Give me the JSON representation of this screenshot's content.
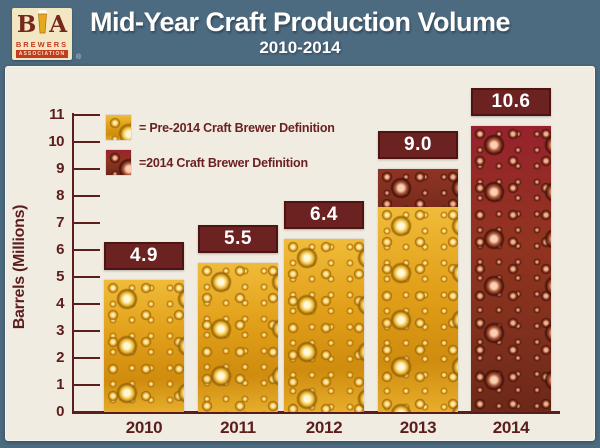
{
  "header": {
    "title": "Mid-Year Craft Production Volume",
    "subtitle": "2010-2014",
    "logo": {
      "letter_b": "B",
      "letter_a": "A",
      "line1": "BREWERS",
      "line2": "ASSOCIATION",
      "registered": "®"
    }
  },
  "legend": {
    "pre2014": "= Pre-2014 Craft Brewer Definition",
    "post2014": "=2014 Craft Brewer Definition"
  },
  "chart_data": {
    "type": "bar",
    "title": "Mid-Year Craft Production Volume 2010-2014",
    "categories": [
      "2010",
      "2011",
      "2012",
      "2013",
      "2014"
    ],
    "series": [
      {
        "name": "Pre-2014 Craft Brewer Definition",
        "values": [
          4.9,
          5.5,
          6.4,
          7.6,
          0
        ]
      },
      {
        "name": "2014 Craft Brewer Definition",
        "values": [
          0,
          0,
          0,
          1.4,
          10.6
        ]
      }
    ],
    "totals": [
      4.9,
      5.5,
      6.4,
      9.0,
      10.6
    ],
    "bar_labels": [
      "4.9",
      "5.5",
      "6.4",
      "9.0",
      "10.6"
    ],
    "xlabel": "",
    "ylabel": "Barrels (Millions)",
    "ylim": [
      0,
      11
    ],
    "yticks": [
      0,
      1,
      2,
      3,
      4,
      5,
      6,
      7,
      8,
      9,
      10,
      11
    ],
    "grid": false,
    "legend_position": "top-left"
  },
  "colors": {
    "header_bg": "#4c6a80",
    "panel_bg": "#f1ece1",
    "maroon_box": "#6b2220",
    "axis_text": "#5c1d1d",
    "gold_base": "#e2a01a",
    "red_base": "#8a3322",
    "value_text": "#ffffff"
  }
}
